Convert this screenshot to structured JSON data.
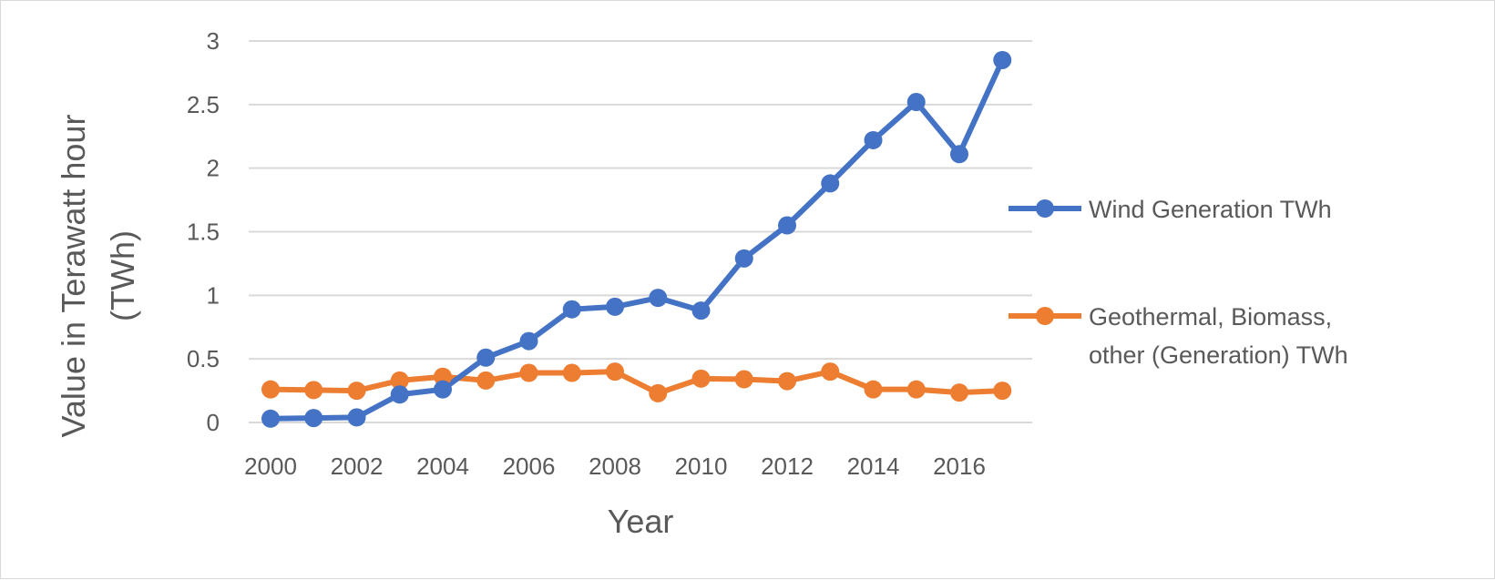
{
  "chart_data": {
    "type": "line",
    "title": "",
    "xlabel": "Year",
    "ylabel_lines": [
      "Value in Terawatt hour",
      "(TWh)"
    ],
    "x": [
      2000,
      2001,
      2002,
      2003,
      2004,
      2005,
      2006,
      2007,
      2008,
      2009,
      2010,
      2011,
      2012,
      2013,
      2014,
      2015,
      2016,
      2017
    ],
    "x_tick_labels": [
      "2000",
      "2002",
      "2004",
      "2006",
      "2008",
      "2010",
      "2012",
      "2014",
      "2016"
    ],
    "y_tick_labels": [
      "0",
      "0.5",
      "1",
      "1.5",
      "2",
      "2.5",
      "3"
    ],
    "ylim": [
      0,
      3
    ],
    "grid": "horizontal",
    "legend_position": "right",
    "series": [
      {
        "name": "Wind Generation TWh",
        "color": "#4472C4",
        "values": [
          0.03,
          0.035,
          0.04,
          0.22,
          0.26,
          0.51,
          0.64,
          0.89,
          0.91,
          0.98,
          0.88,
          1.29,
          1.55,
          1.88,
          2.22,
          2.52,
          2.11,
          2.85
        ]
      },
      {
        "name_lines": [
          "Geothermal, Biomass,",
          "other (Generation) TWh"
        ],
        "color": "#ED7D31",
        "values": [
          0.26,
          0.255,
          0.25,
          0.33,
          0.36,
          0.33,
          0.39,
          0.39,
          0.4,
          0.23,
          0.345,
          0.34,
          0.325,
          0.4,
          0.26,
          0.26,
          0.235,
          0.25
        ]
      }
    ]
  }
}
